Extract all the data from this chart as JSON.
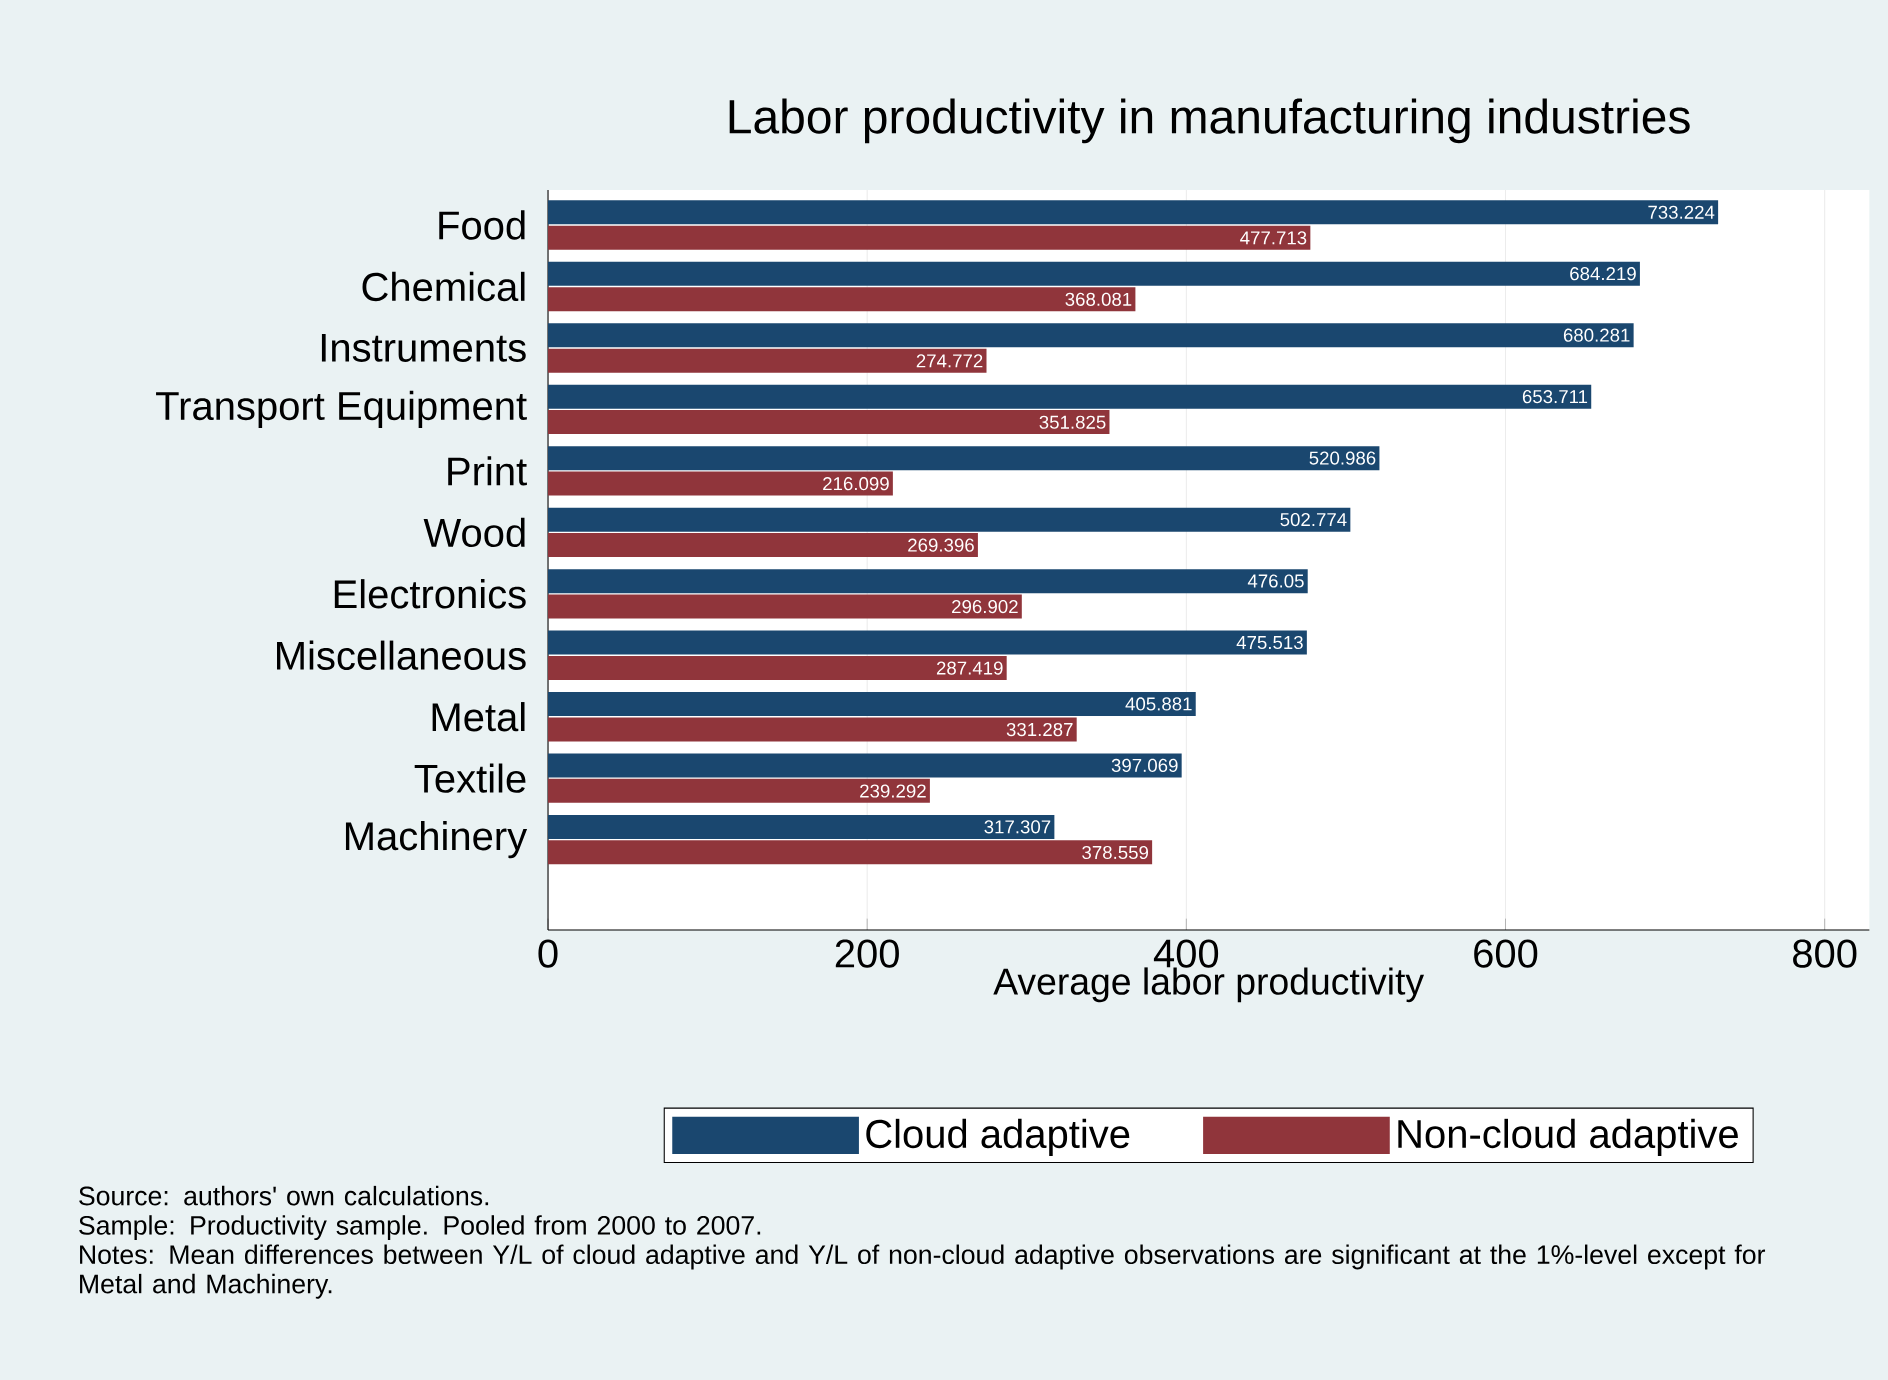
{
  "chart_data": {
    "type": "bar",
    "orientation": "horizontal",
    "title": "Labor productivity in manufacturing industries",
    "xlabel": "Average labor productivity",
    "categories": [
      "Food",
      "Chemical",
      "Instruments",
      "Transport Equipment",
      "Print",
      "Wood",
      "Electronics",
      "Miscellaneous",
      "Metal",
      "Textile",
      "Machinery"
    ],
    "series": [
      {
        "name": "Cloud adaptive",
        "color": "#1a476f",
        "values": [
          733.224,
          684.219,
          680.281,
          653.711,
          520.986,
          502.774,
          476.05,
          475.513,
          405.881,
          397.069,
          317.307
        ]
      },
      {
        "name": "Non-cloud adaptive",
        "color": "#90353b",
        "values": [
          477.713,
          368.081,
          274.772,
          351.825,
          216.099,
          269.396,
          296.902,
          287.419,
          331.287,
          239.292,
          378.559
        ]
      }
    ],
    "xlim": [
      0,
      828
    ],
    "xticks": [
      0,
      200,
      400,
      600,
      800
    ],
    "grid": "x",
    "legend": "bottom",
    "data_labels": true,
    "annotations": [
      "Source: authors' own calculations.",
      "Sample: Productivity sample. Pooled from 2000 to 2007.",
      "Notes: Mean differences between Y/L of cloud adaptive and Y/L of non-cloud adaptive observations are significant at the 1%-level except for Metal and Machinery."
    ]
  }
}
